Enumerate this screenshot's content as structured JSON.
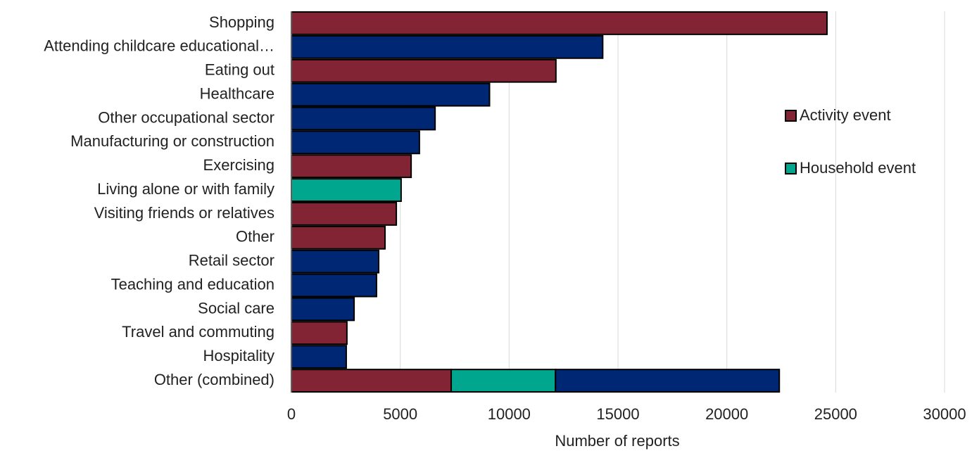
{
  "chart_data": {
    "type": "stacked-bar-horizontal",
    "x_label": "Number of reports",
    "categories": [
      "Shopping",
      "Attending childcare educational…",
      "Eating out",
      "Healthcare",
      "Other occupational sector",
      "Manufacturing or construction",
      "Exercising",
      "Living alone or with family",
      "Visiting friends or relatives",
      "Other",
      "Retail sector",
      "Teaching and education",
      "Social care",
      "Travel and commuting",
      "Hospitality",
      "Other (combined)"
    ],
    "series": [
      {
        "name": "Activity event",
        "color": "#822433",
        "values": [
          24600,
          null,
          12150,
          null,
          null,
          null,
          5500,
          null,
          4820,
          4300,
          null,
          null,
          null,
          2550,
          null,
          7340
        ]
      },
      {
        "name": "Household event",
        "color": "#00a78e",
        "values": [
          null,
          null,
          null,
          null,
          null,
          null,
          null,
          5040,
          null,
          null,
          null,
          null,
          null,
          null,
          null,
          4790
        ]
      },
      {
        "color": "#002774",
        "values": [
          null,
          14300,
          null,
          9100,
          6600,
          5880,
          null,
          null,
          null,
          null,
          4010,
          3910,
          2880,
          null,
          2520,
          10280
        ]
      }
    ],
    "xlim": [
      0,
      30000
    ],
    "xticks": [
      0,
      5000,
      10000,
      15000,
      20000,
      25000,
      30000
    ],
    "grid": true
  }
}
